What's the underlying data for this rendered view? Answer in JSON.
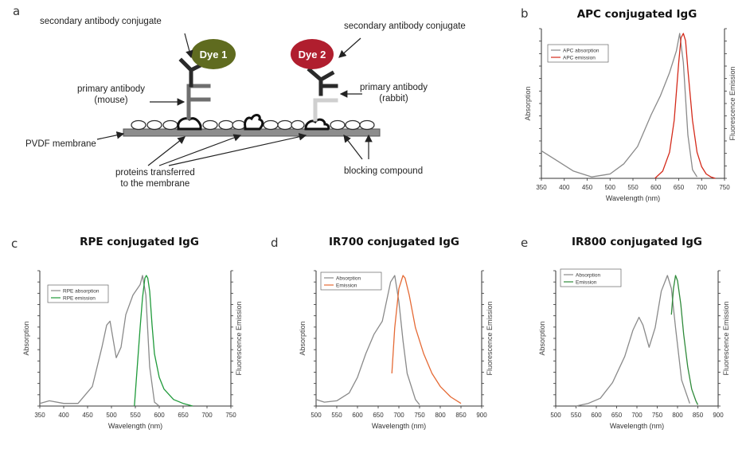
{
  "panel_letters": {
    "a": "a",
    "b": "b",
    "c": "c",
    "d": "d",
    "e": "e"
  },
  "diagram": {
    "dye1": "Dye 1",
    "dye2": "Dye 2",
    "secondary_left": "secondary antibody conjugate",
    "secondary_right": "secondary antibody conjugate",
    "primary_mouse_1": "primary antibody",
    "primary_mouse_2": "(mouse)",
    "primary_rabbit_1": "primary antibody",
    "primary_rabbit_2": "(rabbit)",
    "membrane": "PVDF membrane",
    "proteins_1": "proteins transferred",
    "proteins_2": "to the membrane",
    "blocking": "blocking compound",
    "colors": {
      "dye1": "#5f6b1f",
      "dye2": "#b01e2e"
    }
  },
  "charts": [
    {
      "id": "b",
      "title": "APC conjugated IgG",
      "xlabel": "Wavelength (nm)",
      "ylabel_left": "Absorption",
      "ylabel_right": "Fluorescence Emission",
      "xticks": [
        350,
        400,
        450,
        500,
        550,
        600,
        650,
        700,
        750
      ],
      "legend": [
        "APC absorption",
        "APC emission"
      ],
      "legend_position": "top-left"
    },
    {
      "id": "c",
      "title": "RPE conjugated IgG",
      "xlabel": "Wavelength (nm)",
      "ylabel_left": "Absorption",
      "ylabel_right": "Fluorescence Emission",
      "xticks": [
        350,
        400,
        450,
        500,
        550,
        600,
        650,
        700,
        750
      ],
      "legend": [
        "RPE absorption",
        "RPE emission"
      ],
      "legend_position": "top-left"
    },
    {
      "id": "d",
      "title": "IR700 conjugated IgG",
      "xlabel": "Wavelength (nm)",
      "ylabel_left": "Absorption",
      "ylabel_right": "Fluorescence Emission",
      "xticks": [
        500,
        550,
        600,
        650,
        700,
        750,
        800,
        850,
        900
      ],
      "legend": [
        "Absorption",
        "Emission"
      ],
      "legend_position": "top-left"
    },
    {
      "id": "e",
      "title": "IR800 conjugated IgG",
      "xlabel": "Wavelength (nm)",
      "ylabel_left": "Absorption",
      "ylabel_right": "Fluorescence Emission",
      "xticks": [
        500,
        550,
        600,
        650,
        700,
        750,
        800,
        850,
        900
      ],
      "legend": [
        "Absorption",
        "Emission"
      ],
      "legend_position": "top-left"
    }
  ],
  "chart_data": [
    {
      "type": "line",
      "title": "APC conjugated IgG",
      "xlabel": "Wavelength (nm)",
      "ylabel": "Absorption",
      "ylabel_right": "Fluorescence Emission",
      "xlim": [
        350,
        750
      ],
      "ylim": [
        0,
        1
      ],
      "series": [
        {
          "name": "APC absorption",
          "color": "#8a8a8a",
          "x": [
            350,
            380,
            420,
            460,
            500,
            530,
            560,
            590,
            610,
            630,
            645,
            652,
            660,
            670,
            680,
            690
          ],
          "y": [
            0.19,
            0.13,
            0.05,
            0.01,
            0.03,
            0.1,
            0.22,
            0.44,
            0.57,
            0.73,
            0.88,
            1.0,
            0.8,
            0.3,
            0.06,
            0.01
          ]
        },
        {
          "name": "APC emission",
          "color": "#d42a1a",
          "x": [
            598,
            615,
            630,
            640,
            650,
            655,
            660,
            665,
            670,
            680,
            690,
            700,
            710,
            720,
            730
          ],
          "y": [
            0.0,
            0.05,
            0.18,
            0.4,
            0.8,
            0.97,
            1.0,
            0.95,
            0.75,
            0.4,
            0.18,
            0.08,
            0.03,
            0.01,
            0.0
          ]
        }
      ]
    },
    {
      "type": "line",
      "title": "RPE conjugated IgG",
      "xlabel": "Wavelength (nm)",
      "ylabel": "Absorption",
      "ylabel_right": "Fluorescence Emission",
      "xlim": [
        350,
        750
      ],
      "ylim": [
        0,
        1
      ],
      "series": [
        {
          "name": "RPE absorption",
          "color": "#8a8a8a",
          "x": [
            350,
            370,
            400,
            430,
            460,
            480,
            490,
            497,
            510,
            520,
            530,
            545,
            560,
            565,
            572,
            580,
            590,
            600
          ],
          "y": [
            0.02,
            0.04,
            0.02,
            0.02,
            0.15,
            0.45,
            0.62,
            0.65,
            0.37,
            0.45,
            0.7,
            0.85,
            0.93,
            1.0,
            0.85,
            0.3,
            0.03,
            0.0
          ]
        },
        {
          "name": "RPE emission",
          "color": "#1f9a3a",
          "x": [
            548,
            555,
            560,
            565,
            570,
            573,
            576,
            580,
            585,
            590,
            600,
            610,
            630,
            650,
            670
          ],
          "y": [
            0.0,
            0.35,
            0.6,
            0.83,
            0.98,
            1.0,
            0.98,
            0.88,
            0.62,
            0.4,
            0.22,
            0.13,
            0.05,
            0.02,
            0.0
          ]
        }
      ]
    },
    {
      "type": "line",
      "title": "IR700 conjugated IgG",
      "xlabel": "Wavelength (nm)",
      "ylabel": "Absorption",
      "ylabel_right": "Fluorescence Emission",
      "xlim": [
        500,
        900
      ],
      "ylim": [
        0,
        1
      ],
      "series": [
        {
          "name": "Absorption",
          "color": "#8a8a8a",
          "x": [
            500,
            520,
            550,
            580,
            600,
            620,
            640,
            660,
            680,
            690,
            700,
            710,
            720,
            740,
            750
          ],
          "y": [
            0.05,
            0.03,
            0.04,
            0.1,
            0.22,
            0.4,
            0.55,
            0.65,
            0.95,
            1.0,
            0.8,
            0.5,
            0.25,
            0.05,
            0.01
          ]
        },
        {
          "name": "Emission",
          "color": "#e56a35",
          "x": [
            683,
            690,
            700,
            710,
            715,
            725,
            740,
            760,
            780,
            800,
            825,
            850
          ],
          "y": [
            0.25,
            0.6,
            0.9,
            1.0,
            0.98,
            0.85,
            0.6,
            0.4,
            0.25,
            0.15,
            0.07,
            0.02
          ]
        }
      ]
    },
    {
      "type": "line",
      "title": "IR800 conjugated IgG",
      "xlabel": "Wavelength (nm)",
      "ylabel": "Absorption",
      "ylabel_right": "Fluorescence Emission",
      "xlim": [
        500,
        900
      ],
      "ylim": [
        0,
        1
      ],
      "series": [
        {
          "name": "Absorption",
          "color": "#8a8a8a",
          "x": [
            550,
            580,
            610,
            640,
            670,
            690,
            705,
            715,
            730,
            745,
            760,
            775,
            785,
            795,
            810,
            830
          ],
          "y": [
            0.0,
            0.02,
            0.06,
            0.18,
            0.38,
            0.58,
            0.68,
            0.62,
            0.45,
            0.6,
            0.88,
            1.0,
            0.9,
            0.6,
            0.2,
            0.02
          ]
        },
        {
          "name": "Emission",
          "color": "#2f8a3a",
          "x": [
            785,
            790,
            795,
            800,
            808,
            815,
            825,
            835,
            845,
            850
          ],
          "y": [
            0.7,
            0.9,
            1.0,
            0.96,
            0.78,
            0.55,
            0.3,
            0.13,
            0.04,
            0.01
          ]
        }
      ]
    }
  ]
}
